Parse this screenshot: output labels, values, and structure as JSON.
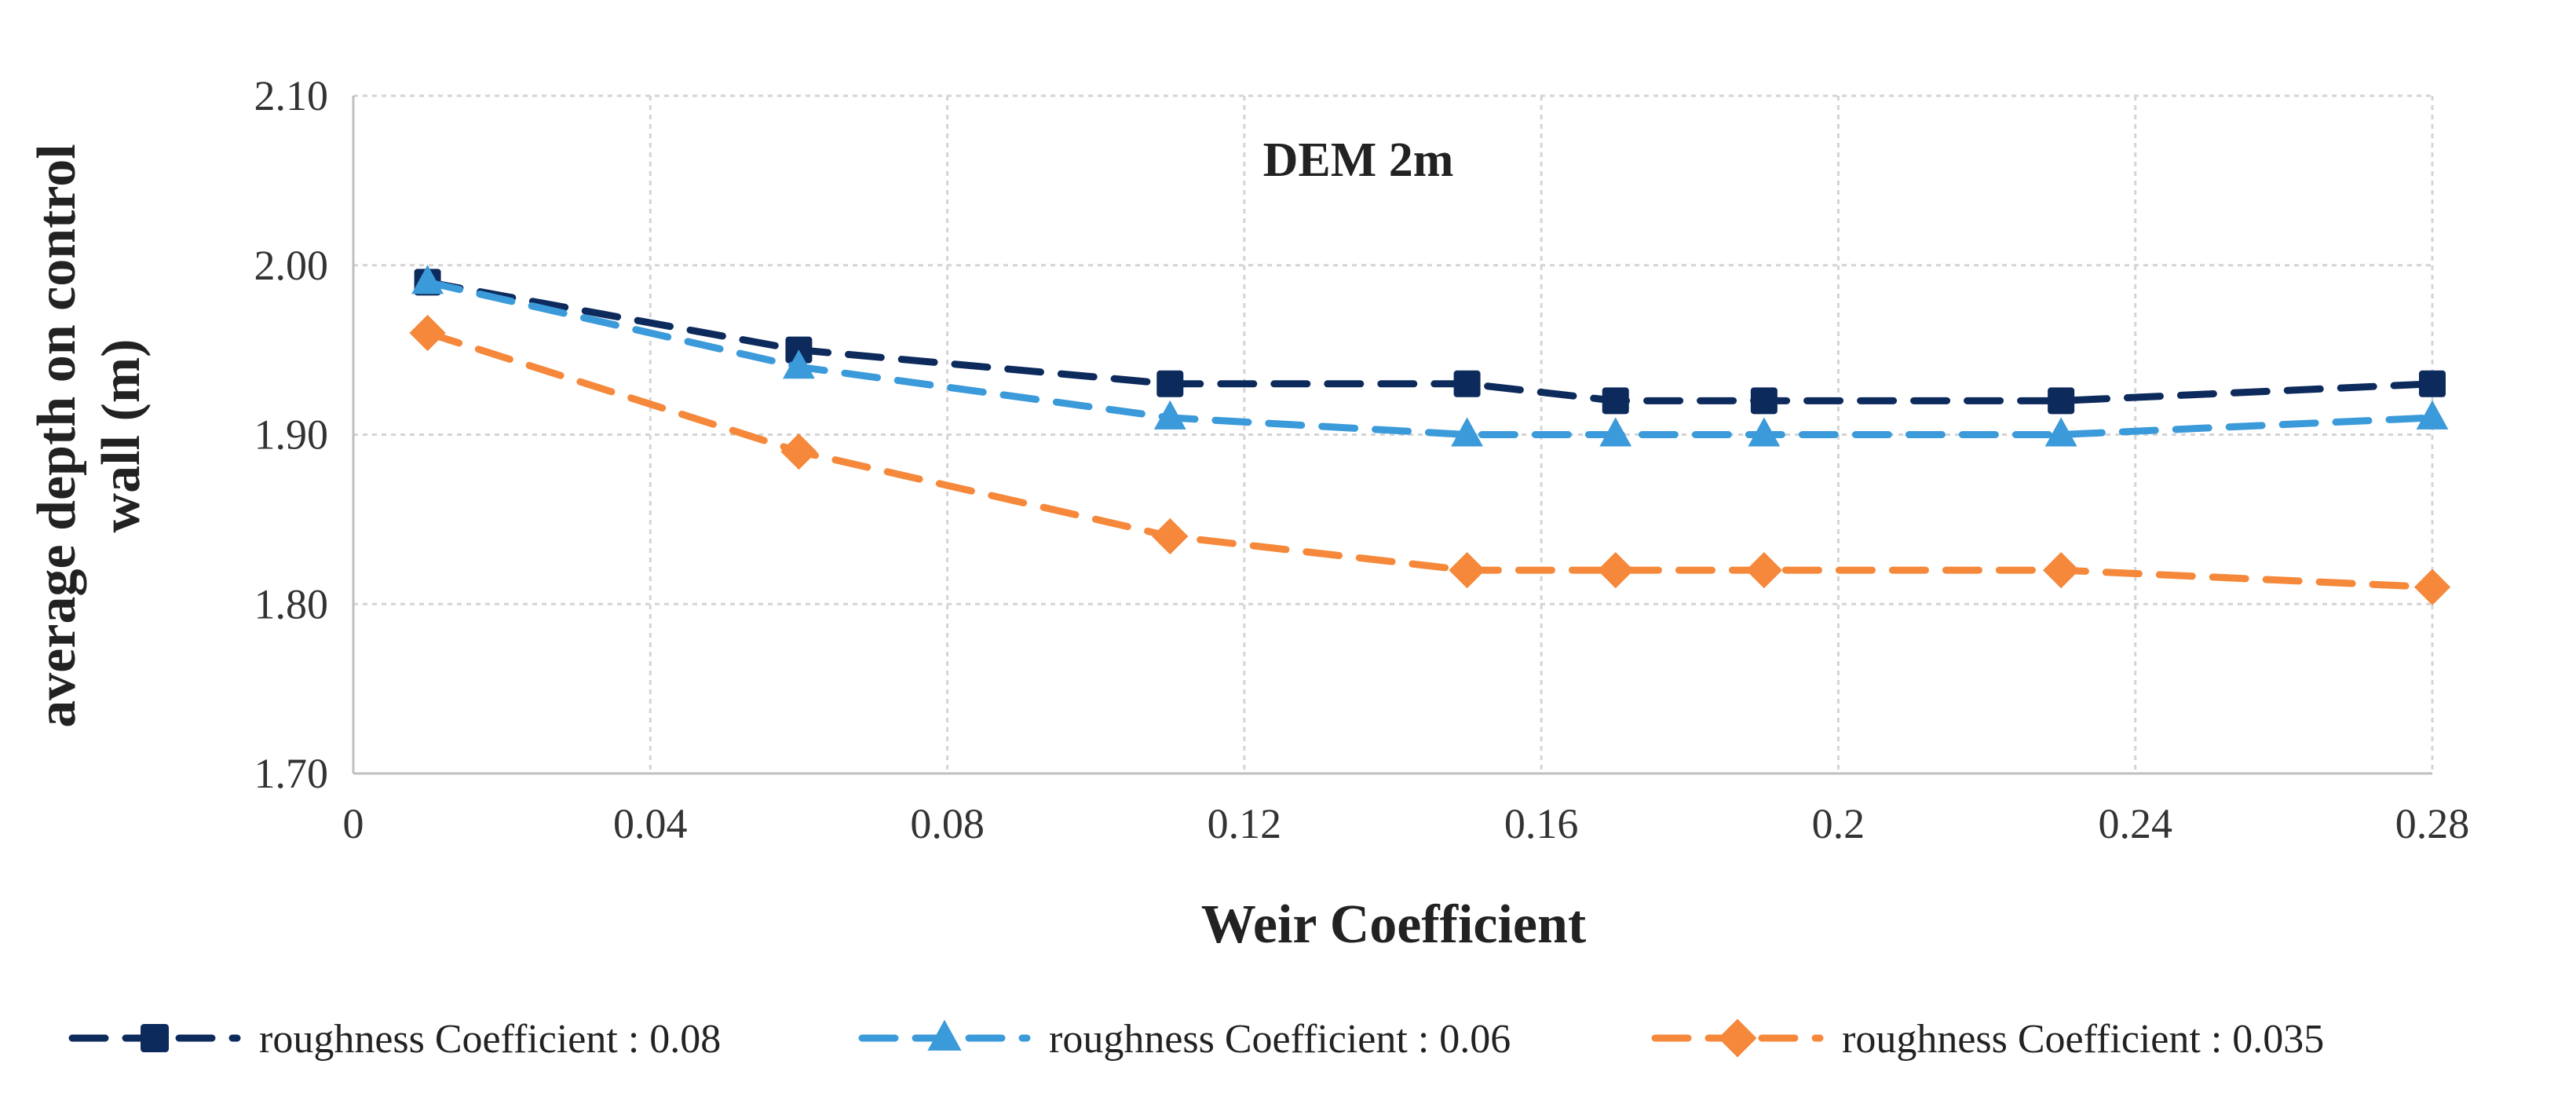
{
  "chart_data": {
    "type": "line",
    "title": "DEM 2m",
    "xlabel": "Weir Coefficient",
    "ylabel_lines": [
      "average  depth  on control",
      "wall  (m)"
    ],
    "xlim": [
      0,
      0.28
    ],
    "ylim": [
      1.7,
      2.1
    ],
    "x_ticks": [
      0,
      0.04,
      0.08,
      0.12,
      0.16,
      0.2,
      0.24,
      0.28
    ],
    "x_tick_labels": [
      "0",
      "0.04",
      "0.08",
      "0.12",
      "0.16",
      "0.2",
      "0.24",
      "0.28"
    ],
    "y_ticks": [
      1.7,
      1.8,
      1.9,
      2.0,
      2.1
    ],
    "y_tick_labels": [
      "1.70",
      "1.80",
      "1.90",
      "2.00",
      "2.10"
    ],
    "grid": true,
    "legend_position": "bottom",
    "x": [
      0.01,
      0.06,
      0.11,
      0.15,
      0.17,
      0.19,
      0.23,
      0.28
    ],
    "series": [
      {
        "name": "roughness Coefficient : 0.08",
        "values": [
          1.99,
          1.95,
          1.93,
          1.93,
          1.92,
          1.92,
          1.92,
          1.93
        ],
        "color": "#0d2a5c",
        "marker": "square"
      },
      {
        "name": "roughness Coefficient : 0.06",
        "values": [
          1.99,
          1.94,
          1.91,
          1.9,
          1.9,
          1.9,
          1.9,
          1.91
        ],
        "color": "#3b9ad9",
        "marker": "triangle"
      },
      {
        "name": "roughness Coefficient : 0.035",
        "values": [
          1.96,
          1.89,
          1.84,
          1.82,
          1.82,
          1.82,
          1.82,
          1.81
        ],
        "color": "#f5883a",
        "marker": "diamond"
      }
    ]
  }
}
